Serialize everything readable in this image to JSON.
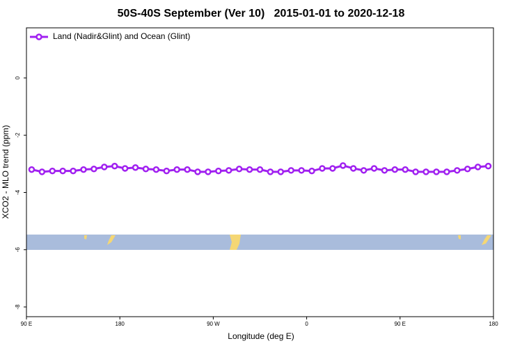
{
  "chart_data": {
    "type": "line",
    "title": "50S-40S September (Ver 10)   2015-01-01 to 2020-12-18",
    "x_label": "Longitude (deg E)",
    "y_label": "XCO2 - MLO trend (ppm)",
    "x": [
      95,
      105,
      115,
      125,
      135,
      145,
      155,
      165,
      175,
      185,
      195,
      205,
      215,
      225,
      235,
      245,
      255,
      265,
      275,
      285,
      295,
      305,
      315,
      325,
      335,
      345,
      355,
      365,
      375,
      385,
      395,
      405,
      415,
      425,
      435,
      445,
      455,
      465,
      475,
      485,
      495,
      505,
      515,
      525,
      535
    ],
    "series": [
      {
        "name": "Land (Nadir&Glint) and Ocean (Glint)",
        "color": "#a020f0",
        "values": [
          -3.2,
          -3.28,
          -3.25,
          -3.25,
          -3.25,
          -3.2,
          -3.18,
          -3.11,
          -3.08,
          -3.16,
          -3.13,
          -3.18,
          -3.2,
          -3.25,
          -3.2,
          -3.2,
          -3.28,
          -3.28,
          -3.25,
          -3.23,
          -3.18,
          -3.2,
          -3.2,
          -3.28,
          -3.28,
          -3.23,
          -3.23,
          -3.25,
          -3.16,
          -3.16,
          -3.06,
          -3.16,
          -3.23,
          -3.16,
          -3.23,
          -3.2,
          -3.2,
          -3.28,
          -3.28,
          -3.28,
          -3.28,
          -3.23,
          -3.18,
          -3.11,
          -3.08
        ]
      }
    ],
    "xlim": [
      90,
      540
    ],
    "xticks": [
      {
        "value": 90,
        "label": "90 E"
      },
      {
        "value": 180,
        "label": "180"
      },
      {
        "value": 270,
        "label": "90 W"
      },
      {
        "value": 360,
        "label": "0"
      },
      {
        "value": 450,
        "label": "90 E"
      },
      {
        "value": 540,
        "label": "180"
      }
    ],
    "ylim": [
      -8.34,
      1.75
    ],
    "yticks": [
      0,
      -2,
      -4,
      -6,
      -8
    ],
    "legend": "top-left"
  }
}
